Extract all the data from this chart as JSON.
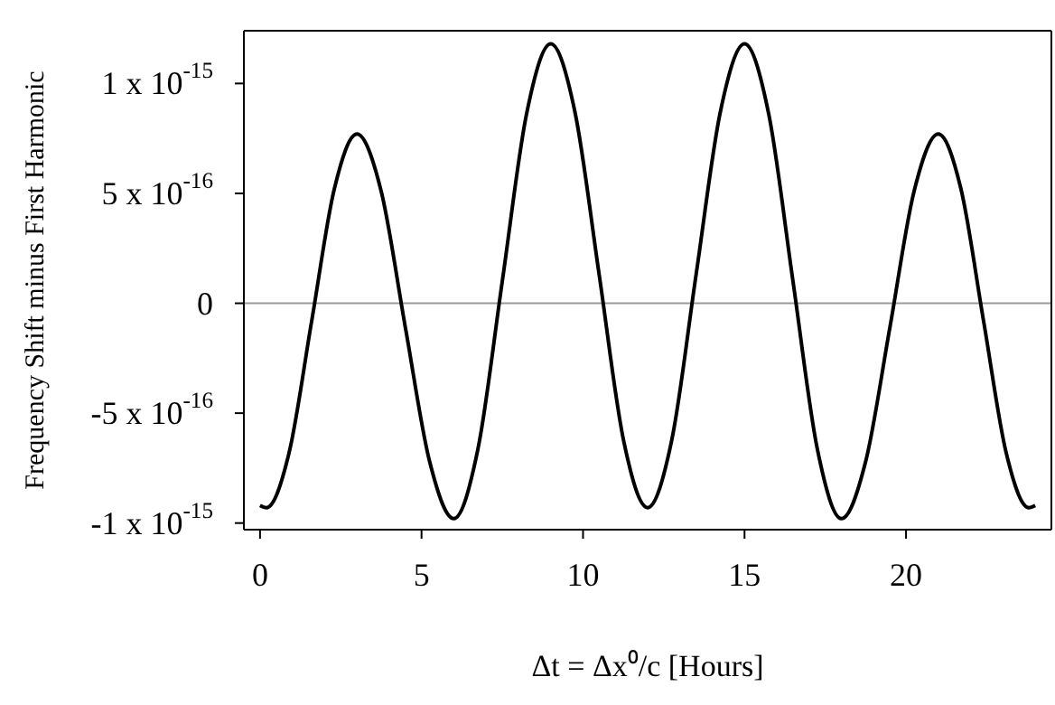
{
  "chart_data": {
    "type": "line",
    "xlabel": "Δt = Δx⁰/c   [Hours]",
    "ylabel": "Frequency Shift minus First Harmonic",
    "x": [
      0,
      0.2,
      0.9,
      1.6,
      2.3,
      3,
      3.75,
      4.5,
      5.25,
      6,
      6.75,
      7.5,
      8.25,
      9,
      9.75,
      10.5,
      11.25,
      12,
      12.75,
      13.5,
      14.25,
      15,
      15.75,
      16.5,
      17.25,
      18,
      18.75,
      19.5,
      20.25,
      21,
      21.7,
      22.4,
      23.1,
      23.8,
      24
    ],
    "series": [
      {
        "color": "#000000",
        "values": [
          -9.2e-16,
          -9.3e-16,
          -6.8e-16,
          -8e-17,
          5.2e-16,
          7.7e-16,
          5.1e-16,
          -1.1e-16,
          -7.2e-16,
          -9.8e-16,
          -6.6e-16,
          1e-16,
          8.6e-16,
          1.18e-15,
          8.7e-16,
          1.3e-16,
          -6.2e-16,
          -9.3e-16,
          -6.2e-16,
          1.3e-16,
          8.7e-16,
          1.18e-15,
          8.6e-16,
          1e-16,
          -6.6e-16,
          -9.8e-16,
          -7.2e-16,
          -1.1e-16,
          5.1e-16,
          7.7e-16,
          5.2e-16,
          -8e-17,
          -6.8e-16,
          -9.3e-16,
          -9.2e-16
        ]
      }
    ],
    "xlim": [
      -0.5,
      24.5
    ],
    "xticks": [
      0,
      5,
      10,
      15,
      20
    ],
    "ylim": [
      -1.03e-15,
      1.24e-15
    ],
    "yticks": [
      {
        "value": -1e-15,
        "label": "-1 x 10$^{-15}$"
      },
      {
        "value": -5e-16,
        "label": "-5 x 10$^{-16}$"
      },
      0,
      {
        "value": 5e-16,
        "label": "5 x 10$^{-16}$"
      },
      {
        "value": 1e-15,
        "label": "1 x 10$^{-15}$"
      }
    ],
    "ref_lines": [
      {
        "axis": "y",
        "value": 0,
        "color": "#999999"
      }
    ],
    "grid": false,
    "marker": "none",
    "line_style": "solid"
  }
}
